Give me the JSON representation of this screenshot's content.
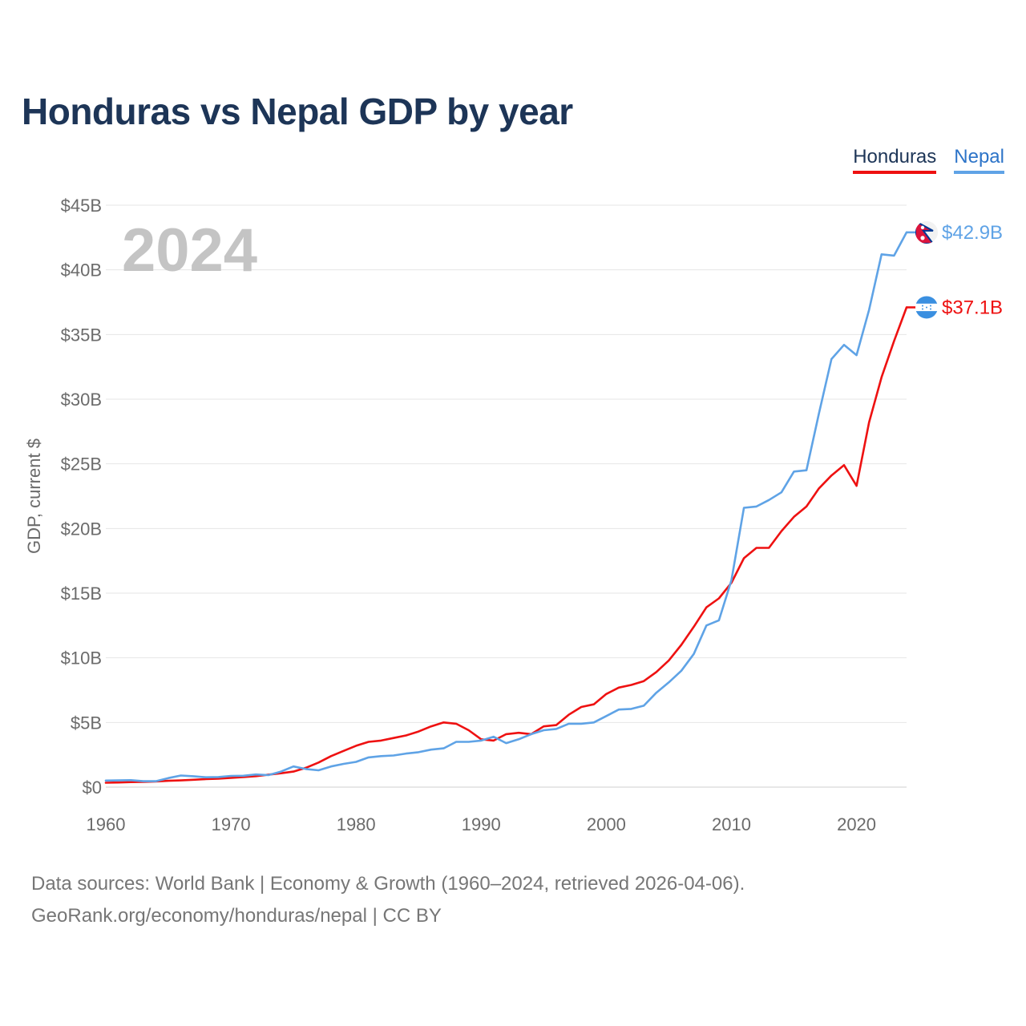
{
  "title": "Honduras vs Nepal GDP by year",
  "legend": [
    {
      "name": "Honduras",
      "color": "#ee1111"
    },
    {
      "name": "Nepal",
      "color": "#5fa3e6"
    }
  ],
  "footer": {
    "line1": "Data sources: World Bank | Economy & Growth (1960–2024, retrieved 2026-04-06).",
    "line2": "GeoRank.org/economy/honduras/nepal | CC BY"
  },
  "chart_data": {
    "type": "line",
    "title": "Honduras vs Nepal GDP by year",
    "xlabel": "",
    "ylabel": "GDP, current $",
    "xlim": [
      1960,
      2024
    ],
    "ylim": [
      0,
      45
    ],
    "units": "billions USD",
    "watermark_year": "2024",
    "x_ticks": [
      1960,
      1970,
      1980,
      1990,
      2000,
      2010,
      2020
    ],
    "x_tick_labels": [
      "1960",
      "1970",
      "1980",
      "1990",
      "2000",
      "2010",
      "2020"
    ],
    "y_ticks": [
      0,
      5,
      10,
      15,
      20,
      25,
      30,
      35,
      40,
      45
    ],
    "y_tick_labels": [
      "$0",
      "$5B",
      "$10B",
      "$15B",
      "$20B",
      "$25B",
      "$30B",
      "$35B",
      "$40B",
      "$45B"
    ],
    "legend_position": "top-right",
    "grid": true,
    "x": [
      1960,
      1961,
      1962,
      1963,
      1964,
      1965,
      1966,
      1967,
      1968,
      1969,
      1970,
      1971,
      1972,
      1973,
      1974,
      1975,
      1976,
      1977,
      1978,
      1979,
      1980,
      1981,
      1982,
      1983,
      1984,
      1985,
      1986,
      1987,
      1988,
      1989,
      1990,
      1991,
      1992,
      1993,
      1994,
      1995,
      1996,
      1997,
      1998,
      1999,
      2000,
      2001,
      2002,
      2003,
      2004,
      2005,
      2006,
      2007,
      2008,
      2009,
      2010,
      2011,
      2012,
      2013,
      2014,
      2015,
      2016,
      2017,
      2018,
      2019,
      2020,
      2021,
      2022,
      2023,
      2024
    ],
    "series": [
      {
        "name": "Honduras",
        "color": "#ee1111",
        "end_label": "$37.1B",
        "flag": "honduras-flag",
        "values": [
          0.34,
          0.36,
          0.39,
          0.41,
          0.44,
          0.49,
          0.52,
          0.57,
          0.62,
          0.65,
          0.72,
          0.78,
          0.85,
          0.97,
          1.07,
          1.2,
          1.5,
          1.9,
          2.4,
          2.8,
          3.2,
          3.5,
          3.6,
          3.8,
          4.0,
          4.3,
          4.7,
          5.0,
          4.9,
          4.4,
          3.7,
          3.6,
          4.1,
          4.2,
          4.1,
          4.7,
          4.8,
          5.6,
          6.2,
          6.4,
          7.2,
          7.7,
          7.9,
          8.2,
          8.9,
          9.8,
          11.0,
          12.4,
          13.9,
          14.6,
          15.8,
          17.7,
          18.5,
          18.5,
          19.8,
          20.9,
          21.7,
          23.1,
          24.1,
          24.9,
          23.3,
          28.2,
          31.7,
          34.5,
          37.1
        ]
      },
      {
        "name": "Nepal",
        "color": "#5fa3e6",
        "end_label": "$42.9B",
        "flag": "nepal-flag",
        "values": [
          0.51,
          0.52,
          0.54,
          0.46,
          0.46,
          0.7,
          0.9,
          0.84,
          0.76,
          0.78,
          0.87,
          0.88,
          0.98,
          0.93,
          1.2,
          1.6,
          1.4,
          1.3,
          1.6,
          1.8,
          1.95,
          2.3,
          2.4,
          2.45,
          2.6,
          2.7,
          2.9,
          3.0,
          3.5,
          3.5,
          3.6,
          3.9,
          3.4,
          3.7,
          4.1,
          4.4,
          4.5,
          4.9,
          4.9,
          5.0,
          5.5,
          6.0,
          6.05,
          6.3,
          7.3,
          8.1,
          9.0,
          10.3,
          12.5,
          12.9,
          16.0,
          21.6,
          21.7,
          22.2,
          22.8,
          24.4,
          24.5,
          28.9,
          33.1,
          34.2,
          33.4,
          36.9,
          41.2,
          41.1,
          42.9
        ]
      }
    ]
  }
}
